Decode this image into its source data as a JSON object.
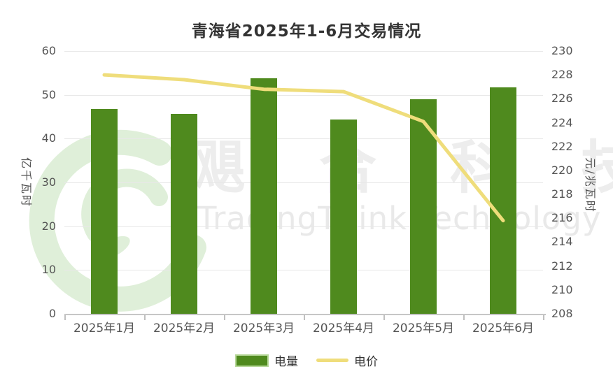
{
  "title": "青海省2025年1-6月交易情况",
  "watermark": {
    "cn_chars": [
      "飓",
      "合",
      "科",
      "技"
    ],
    "en_text": "TradingThink Technology"
  },
  "legend": [
    {
      "label": "电量",
      "type": "bar",
      "color": "#4f8a1e",
      "border": "#b7d89a"
    },
    {
      "label": "电价",
      "type": "line",
      "color": "#efdd7b"
    }
  ],
  "colors": {
    "bar": "#4f8a1e",
    "line": "#efdd7b",
    "grid": "#e8e8e8",
    "axis": "#c6c6c6",
    "text": "#555555",
    "title": "#333333",
    "watermark": "#ededed",
    "watermark_green": "#d8ecd0"
  },
  "chart_data": {
    "type": "bar",
    "subtype": "bar+line combo",
    "title": "青海省2025年1-6月交易情况",
    "categories": [
      "2025年1月",
      "2025年2月",
      "2025年3月",
      "2025年4月",
      "2025年5月",
      "2025年6月"
    ],
    "series": [
      {
        "name": "电量",
        "type": "bar",
        "axis": "left",
        "unit": "亿千瓦时",
        "color": "#4f8a1e",
        "values": [
          46.7,
          45.6,
          53.8,
          44.3,
          49.0,
          51.7
        ]
      },
      {
        "name": "电价",
        "type": "line",
        "axis": "right",
        "unit": "元/兆瓦时",
        "color": "#efdd7b",
        "values": [
          228.0,
          227.6,
          226.8,
          226.6,
          224.1,
          215.8
        ]
      }
    ],
    "left_axis": {
      "name": "亿千瓦时",
      "min": 0,
      "max": 60,
      "step": 10,
      "ticks": [
        0,
        10,
        20,
        30,
        40,
        50,
        60
      ]
    },
    "right_axis": {
      "name": "元/兆瓦时",
      "min": 208,
      "max": 230,
      "step": 2,
      "ticks": [
        208,
        210,
        212,
        214,
        216,
        218,
        220,
        222,
        224,
        226,
        228,
        230
      ]
    },
    "grid": true,
    "legend_position": "bottom"
  }
}
